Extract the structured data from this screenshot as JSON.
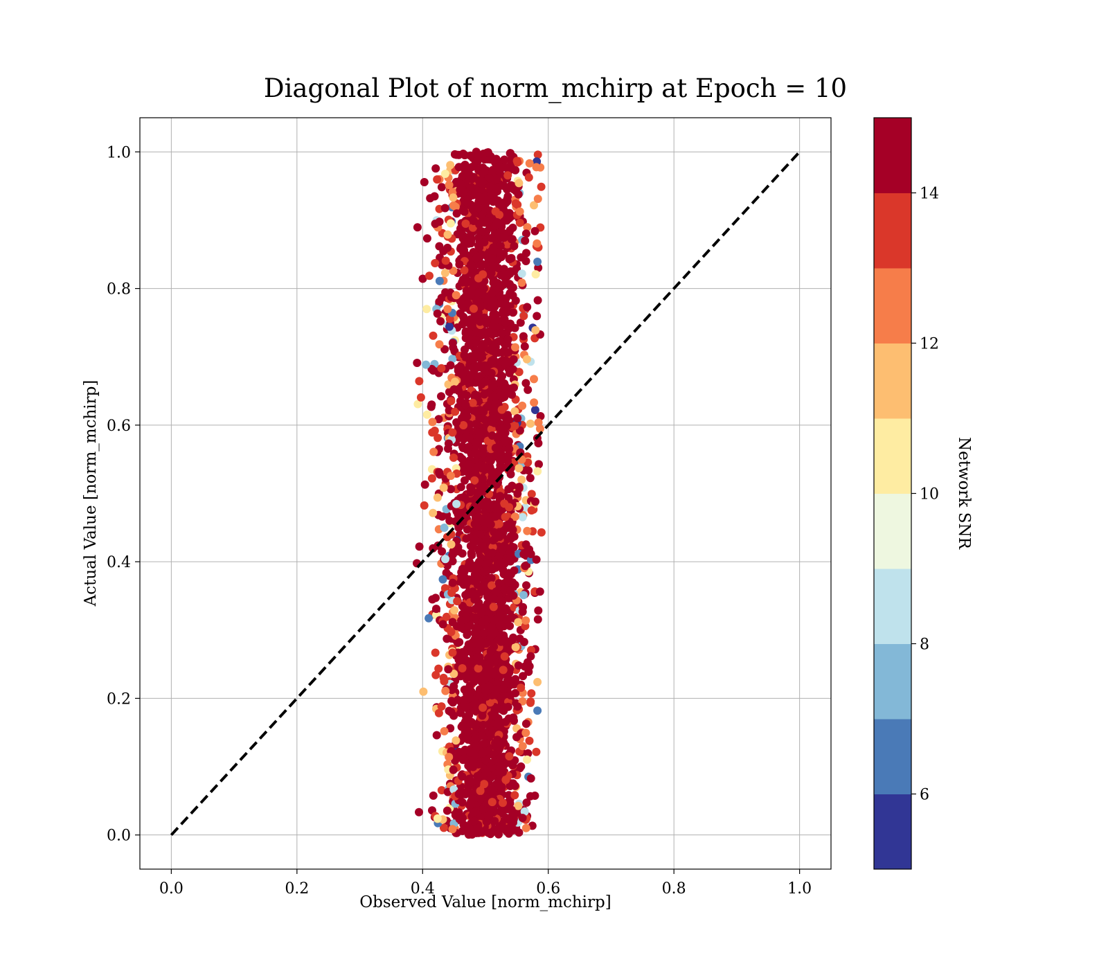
{
  "chart_data": {
    "type": "scatter",
    "title": "Diagonal Plot of norm_mchirp at Epoch = 10",
    "xlabel": "Observed Value [norm_mchirp]",
    "ylabel": "Actual Value [norm_mchirp]",
    "xlim": [
      -0.05,
      1.05
    ],
    "ylim": [
      -0.05,
      1.05
    ],
    "xticks": [
      0.0,
      0.2,
      0.4,
      0.6,
      0.8,
      1.0
    ],
    "yticks": [
      0.0,
      0.2,
      0.4,
      0.6,
      0.8,
      1.0
    ],
    "xtick_labels": [
      "0.0",
      "0.2",
      "0.4",
      "0.6",
      "0.8",
      "1.0"
    ],
    "ytick_labels": [
      "0.0",
      "0.2",
      "0.4",
      "0.6",
      "0.8",
      "1.0"
    ],
    "grid": true,
    "reference_line": {
      "style": "dashed",
      "color": "#000000",
      "x": [
        0.0,
        1.0
      ],
      "y": [
        0.0,
        1.0
      ]
    },
    "points_summary": {
      "observed_center": 0.5,
      "observed_spread": 0.035,
      "observed_range": [
        0.39,
        0.59
      ],
      "actual_range": [
        0.0,
        1.0
      ],
      "dominant_color_value": 15
    },
    "colorbar": {
      "label": "Network SNR",
      "range": [
        5,
        15
      ],
      "ticks": [
        6,
        8,
        10,
        12,
        14
      ],
      "tick_labels": [
        "6",
        "8",
        "10",
        "12",
        "14"
      ],
      "bins": [
        5,
        6,
        7,
        8,
        9,
        10,
        11,
        12,
        13,
        14,
        15
      ],
      "colors": [
        "#313695",
        "#4a7ab7",
        "#83b8d7",
        "#bfe2ec",
        "#eef7e0",
        "#feeca2",
        "#fdbe71",
        "#f67d4a",
        "#da372a",
        "#a50026"
      ]
    }
  }
}
